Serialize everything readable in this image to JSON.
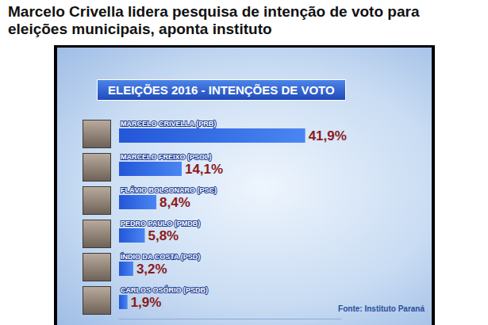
{
  "headline": "Marcelo Crivella lidera pesquisa de intenção de voto para eleições municipais, aponta instituto",
  "chart_data": {
    "type": "bar",
    "orientation": "horizontal",
    "title": "ELEIÇÕES 2016 - INTENÇÕES DE VOTO",
    "annotations": [
      "Fonte: Instituto Paraná"
    ],
    "categories": [
      "MARCELO CRIVELLA (PRB)",
      "MARCELO FREIXO (PSOL)",
      "FLÁVIO BOLSONARO (PSC)",
      "PEDRO PAULO (PMDB)",
      "ÍNDIO DA COSTA (PSD)",
      "CARLOS OSÓRIO (PSDB)"
    ],
    "values": [
      41.9,
      14.1,
      8.4,
      5.8,
      3.2,
      1.9
    ],
    "value_labels": [
      "41,9%",
      "14,1%",
      "8,4%",
      "5,8%",
      "3,2%",
      "1,9%"
    ],
    "color": "#2356d8",
    "xlim": [
      0,
      50
    ],
    "grid": false,
    "data_labels": true,
    "tick_labels": "y"
  }
}
